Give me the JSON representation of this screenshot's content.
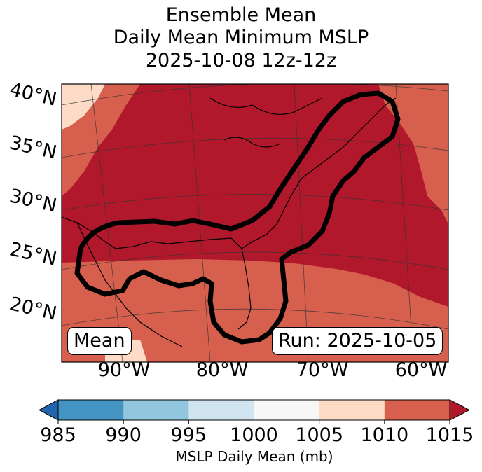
{
  "title": {
    "line1": "Ensemble Mean",
    "line2": "Daily Mean Minimum MSLP",
    "line3": "2025-10-08 12z-12z"
  },
  "map": {
    "lat_labels": [
      "40°N",
      "35°N",
      "30°N",
      "25°N",
      "20°N"
    ],
    "lon_labels": [
      "90°W",
      "80°W",
      "70°W",
      "60°W"
    ],
    "mean_label": "Mean",
    "run_label": "Run: 2025-10-05",
    "colors": {
      "c1015": "#b2182b",
      "c1010": "#d6604d",
      "c1005": "#fddbc7",
      "c1000": "#f7f7f7",
      "contour": "#000000"
    }
  },
  "colorbar": {
    "ticks": [
      "985",
      "990",
      "995",
      "1000",
      "1005",
      "1010",
      "1015"
    ],
    "colors": [
      "#2166ac",
      "#4393c3",
      "#92c5de",
      "#d1e5f0",
      "#f7f7f7",
      "#fddbc7",
      "#d6604d",
      "#b2182b"
    ],
    "label": "MSLP Daily Mean (mb)"
  }
}
